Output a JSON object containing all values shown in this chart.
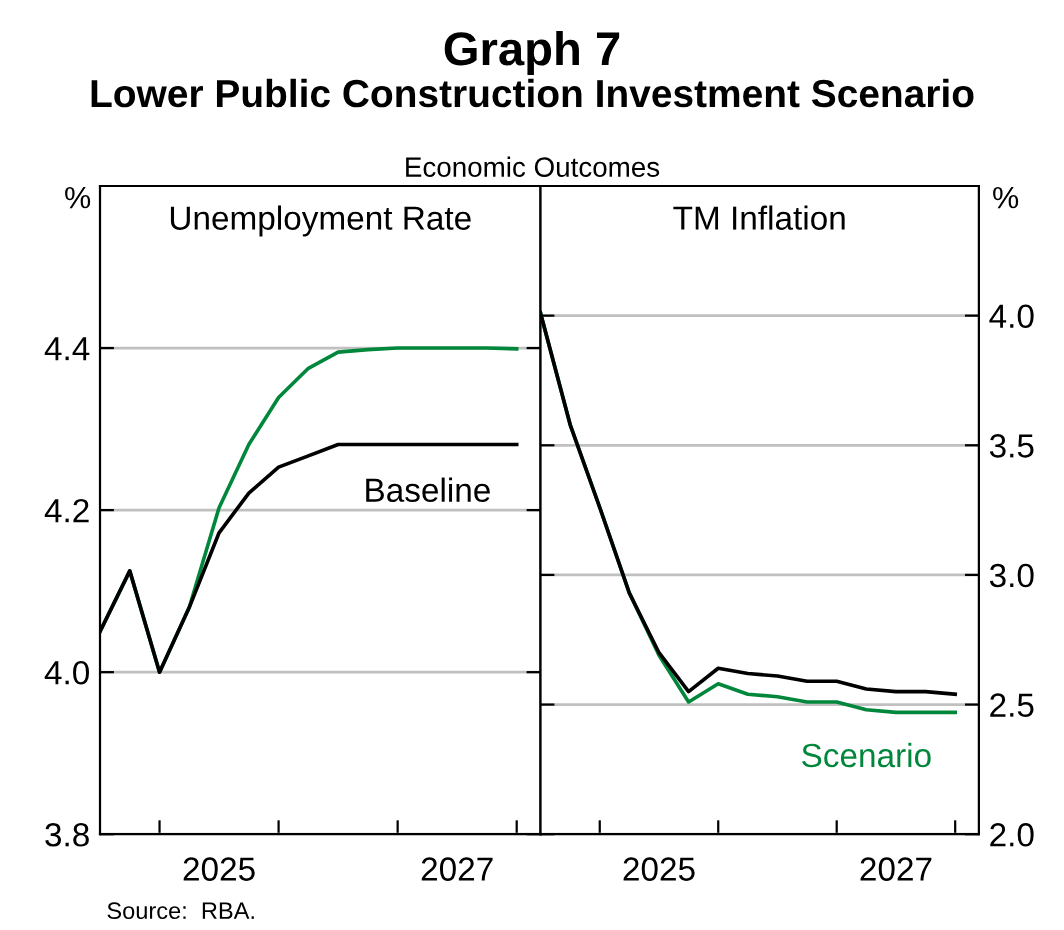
{
  "chart_data": [
    {
      "type": "line",
      "title": "Unemployment Rate",
      "ylabel": "%",
      "annotations": [
        "Graph 7",
        "Lower Public Construction Investment Scenario",
        "Economic Outcomes",
        "Source:  RBA."
      ],
      "x": [
        2024.0,
        2024.25,
        2024.5,
        2024.75,
        2025.0,
        2025.25,
        2025.5,
        2025.75,
        2026.0,
        2026.25,
        2026.5,
        2026.75,
        2027.0,
        2027.25,
        2027.5
      ],
      "series": [
        {
          "color": "#00873c",
          "values": [
            4.05,
            4.125,
            4.0,
            4.08,
            4.203,
            4.281,
            4.339,
            4.375,
            4.395,
            4.398,
            4.4,
            4.4,
            4.4,
            4.4,
            4.399
          ]
        },
        {
          "name": "Baseline",
          "color": "#000000",
          "values": [
            4.05,
            4.125,
            4.0,
            4.08,
            4.172,
            4.221,
            4.253,
            4.267,
            4.281,
            4.281,
            4.281,
            4.281,
            4.281,
            4.281,
            4.281
          ]
        }
      ],
      "xlim": [
        2024.0,
        2027.7
      ],
      "xticks": [
        {
          "value": 2024.5,
          "label": null
        },
        {
          "value": 2025,
          "label": "2025"
        },
        {
          "value": 2025.5,
          "label": null
        },
        {
          "value": 2026.5,
          "label": null
        },
        {
          "value": 2027,
          "label": "2027"
        },
        {
          "value": 2027.5,
          "label": null
        }
      ],
      "ylim": [
        3.8,
        4.6
      ],
      "yticks": [
        {
          "value": 3.8,
          "label": "3.8"
        },
        {
          "value": 4.0,
          "label": "4.0"
        },
        {
          "value": 4.2,
          "label": "4.2"
        },
        {
          "value": 4.4,
          "label": "4.4"
        }
      ],
      "grid": "y"
    },
    {
      "type": "line",
      "title": "TM Inflation",
      "y2label": "%",
      "x": [
        2024.0,
        2024.25,
        2024.5,
        2024.75,
        2025.0,
        2025.25,
        2025.5,
        2025.75,
        2026.0,
        2026.25,
        2026.5,
        2026.75,
        2027.0,
        2027.25,
        2027.5
      ],
      "series": [
        {
          "name": "Scenario",
          "axis": "y2",
          "color": "#00873c",
          "values": [
            4.01,
            3.58,
            3.26,
            2.93,
            2.69,
            2.51,
            2.58,
            2.54,
            2.53,
            2.51,
            2.51,
            2.48,
            2.47,
            2.47,
            2.47
          ]
        },
        {
          "axis": "y2",
          "color": "#000000",
          "values": [
            4.01,
            3.58,
            3.26,
            2.93,
            2.7,
            2.55,
            2.64,
            2.62,
            2.61,
            2.59,
            2.59,
            2.56,
            2.55,
            2.55,
            2.54
          ]
        }
      ],
      "xlim": [
        2024.0,
        2027.7
      ],
      "xticks": [
        {
          "value": 2024.5,
          "label": null
        },
        {
          "value": 2025,
          "label": "2025"
        },
        {
          "value": 2025.5,
          "label": null
        },
        {
          "value": 2026.5,
          "label": null
        },
        {
          "value": 2027,
          "label": "2027"
        },
        {
          "value": 2027.5,
          "label": null
        }
      ],
      "y2lim": [
        2.0,
        4.5
      ],
      "y2ticks": [
        {
          "value": 2.0,
          "label": "2.0"
        },
        {
          "value": 2.5,
          "label": "2.5"
        },
        {
          "value": 3.0,
          "label": "3.0"
        },
        {
          "value": 3.5,
          "label": "3.5"
        },
        {
          "value": 4.0,
          "label": "4.0"
        }
      ],
      "grid": "y"
    }
  ]
}
